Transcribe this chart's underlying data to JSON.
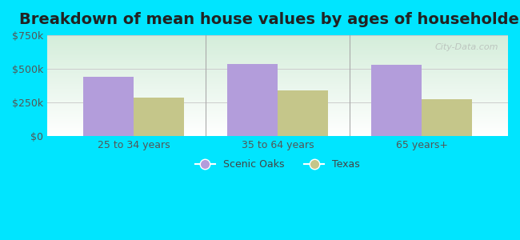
{
  "title": "Breakdown of mean house values by ages of householders",
  "categories": [
    "25 to 34 years",
    "35 to 64 years",
    "65 years+"
  ],
  "scenic_oaks": [
    440000,
    535000,
    530000
  ],
  "texas": [
    285000,
    340000,
    275000
  ],
  "ylim": [
    0,
    750000
  ],
  "yticks": [
    0,
    250000,
    500000,
    750000
  ],
  "ytick_labels": [
    "$0",
    "$250k",
    "$500k",
    "$750k"
  ],
  "bar_color_scenic": "#b39ddb",
  "bar_color_texas": "#c5c68a",
  "legend_scenic": "Scenic Oaks",
  "legend_texas": "Texas",
  "bg_outer": "#00e5ff",
  "title_fontsize": 14,
  "tick_fontsize": 9,
  "legend_fontsize": 9,
  "bar_width": 0.35,
  "watermark": "City-Data.com"
}
